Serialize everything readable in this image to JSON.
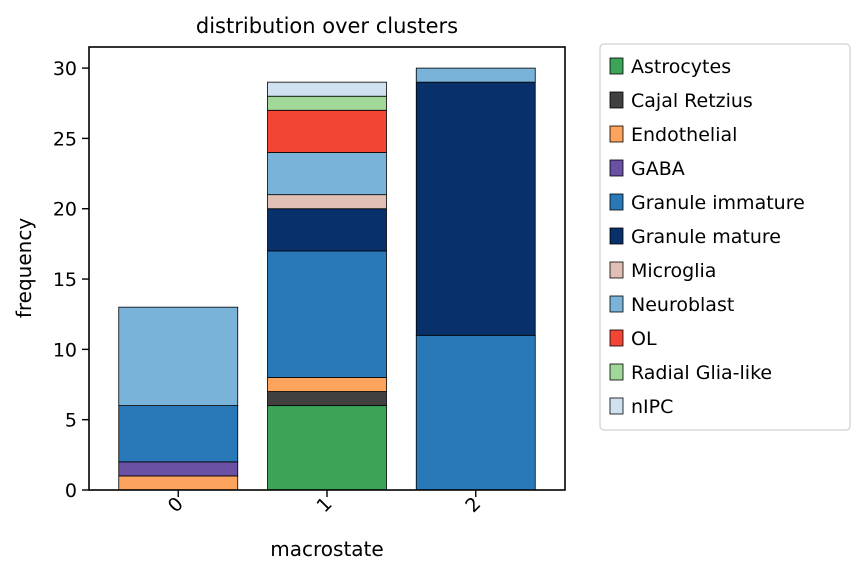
{
  "chart_data": {
    "type": "bar",
    "stacked": true,
    "title": "distribution over clusters",
    "xlabel": "macrostate",
    "ylabel": "frequency",
    "categories": [
      "0",
      "1",
      "2"
    ],
    "ylim": [
      0,
      31.5
    ],
    "yticks": [
      0,
      5,
      10,
      15,
      20,
      25,
      30
    ],
    "grid": false,
    "legend_position": "outside-right",
    "series": [
      {
        "name": "Astrocytes",
        "color": "#3ba458",
        "values": [
          0,
          6,
          0
        ]
      },
      {
        "name": "Cajal Retzius",
        "color": "#404040",
        "values": [
          0,
          1,
          0
        ]
      },
      {
        "name": "Endothelial",
        "color": "#fca35d",
        "values": [
          1,
          1,
          0
        ]
      },
      {
        "name": "GABA",
        "color": "#6a51a3",
        "values": [
          1,
          0,
          0
        ]
      },
      {
        "name": "Granule immature",
        "color": "#2978b8",
        "values": [
          4,
          9,
          11
        ]
      },
      {
        "name": "Granule mature",
        "color": "#08306b",
        "values": [
          0,
          3,
          18
        ]
      },
      {
        "name": "Microglia",
        "color": "#e1bfb4",
        "values": [
          0,
          1,
          0
        ]
      },
      {
        "name": "Neuroblast",
        "color": "#7ab3d9",
        "values": [
          7,
          3,
          1
        ]
      },
      {
        "name": "OL",
        "color": "#f34534",
        "values": [
          0,
          3,
          0
        ]
      },
      {
        "name": "Radial Glia-like",
        "color": "#a1d89a",
        "values": [
          0,
          1,
          0
        ]
      },
      {
        "name": "nIPC",
        "color": "#d0e1f2",
        "values": [
          0,
          1,
          0
        ]
      }
    ]
  }
}
